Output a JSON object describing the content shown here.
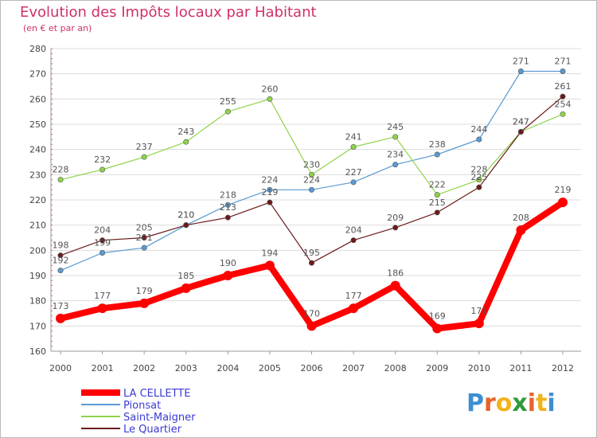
{
  "title": "Evolution des Impôts locaux par Habitant",
  "subtitle": "(en € et par an)",
  "brand": "Proxiti",
  "chart_data": {
    "type": "line",
    "title": "Evolution des Impôts locaux par Habitant",
    "subtitle": "(en € et par an)",
    "xlabel": "",
    "ylabel": "",
    "x": [
      2000,
      2001,
      2002,
      2003,
      2004,
      2005,
      2006,
      2007,
      2008,
      2009,
      2010,
      2011,
      2012
    ],
    "ylim": [
      160,
      280
    ],
    "yticks": [
      160,
      170,
      180,
      190,
      200,
      210,
      220,
      230,
      240,
      250,
      260,
      270,
      280
    ],
    "grid": true,
    "legend_position": "bottom-left",
    "series": [
      {
        "name": "LA CELLETTE",
        "color": "#ff0000",
        "values": [
          173,
          177,
          179,
          185,
          190,
          194,
          170,
          177,
          186,
          169,
          171,
          208,
          219
        ]
      },
      {
        "name": "Pionsat",
        "color": "#5a9ad2",
        "values": [
          192,
          199,
          201,
          210,
          218,
          224,
          224,
          227,
          234,
          238,
          244,
          271,
          271
        ]
      },
      {
        "name": "Saint-Maigner",
        "color": "#8ed44a",
        "values": [
          228,
          232,
          237,
          243,
          255,
          260,
          230,
          241,
          245,
          222,
          228,
          247,
          254
        ]
      },
      {
        "name": "Le Quartier",
        "color": "#6b1a1a",
        "values": [
          198,
          204,
          205,
          210,
          213,
          219,
          195,
          204,
          209,
          215,
          225,
          247,
          261
        ]
      }
    ]
  }
}
